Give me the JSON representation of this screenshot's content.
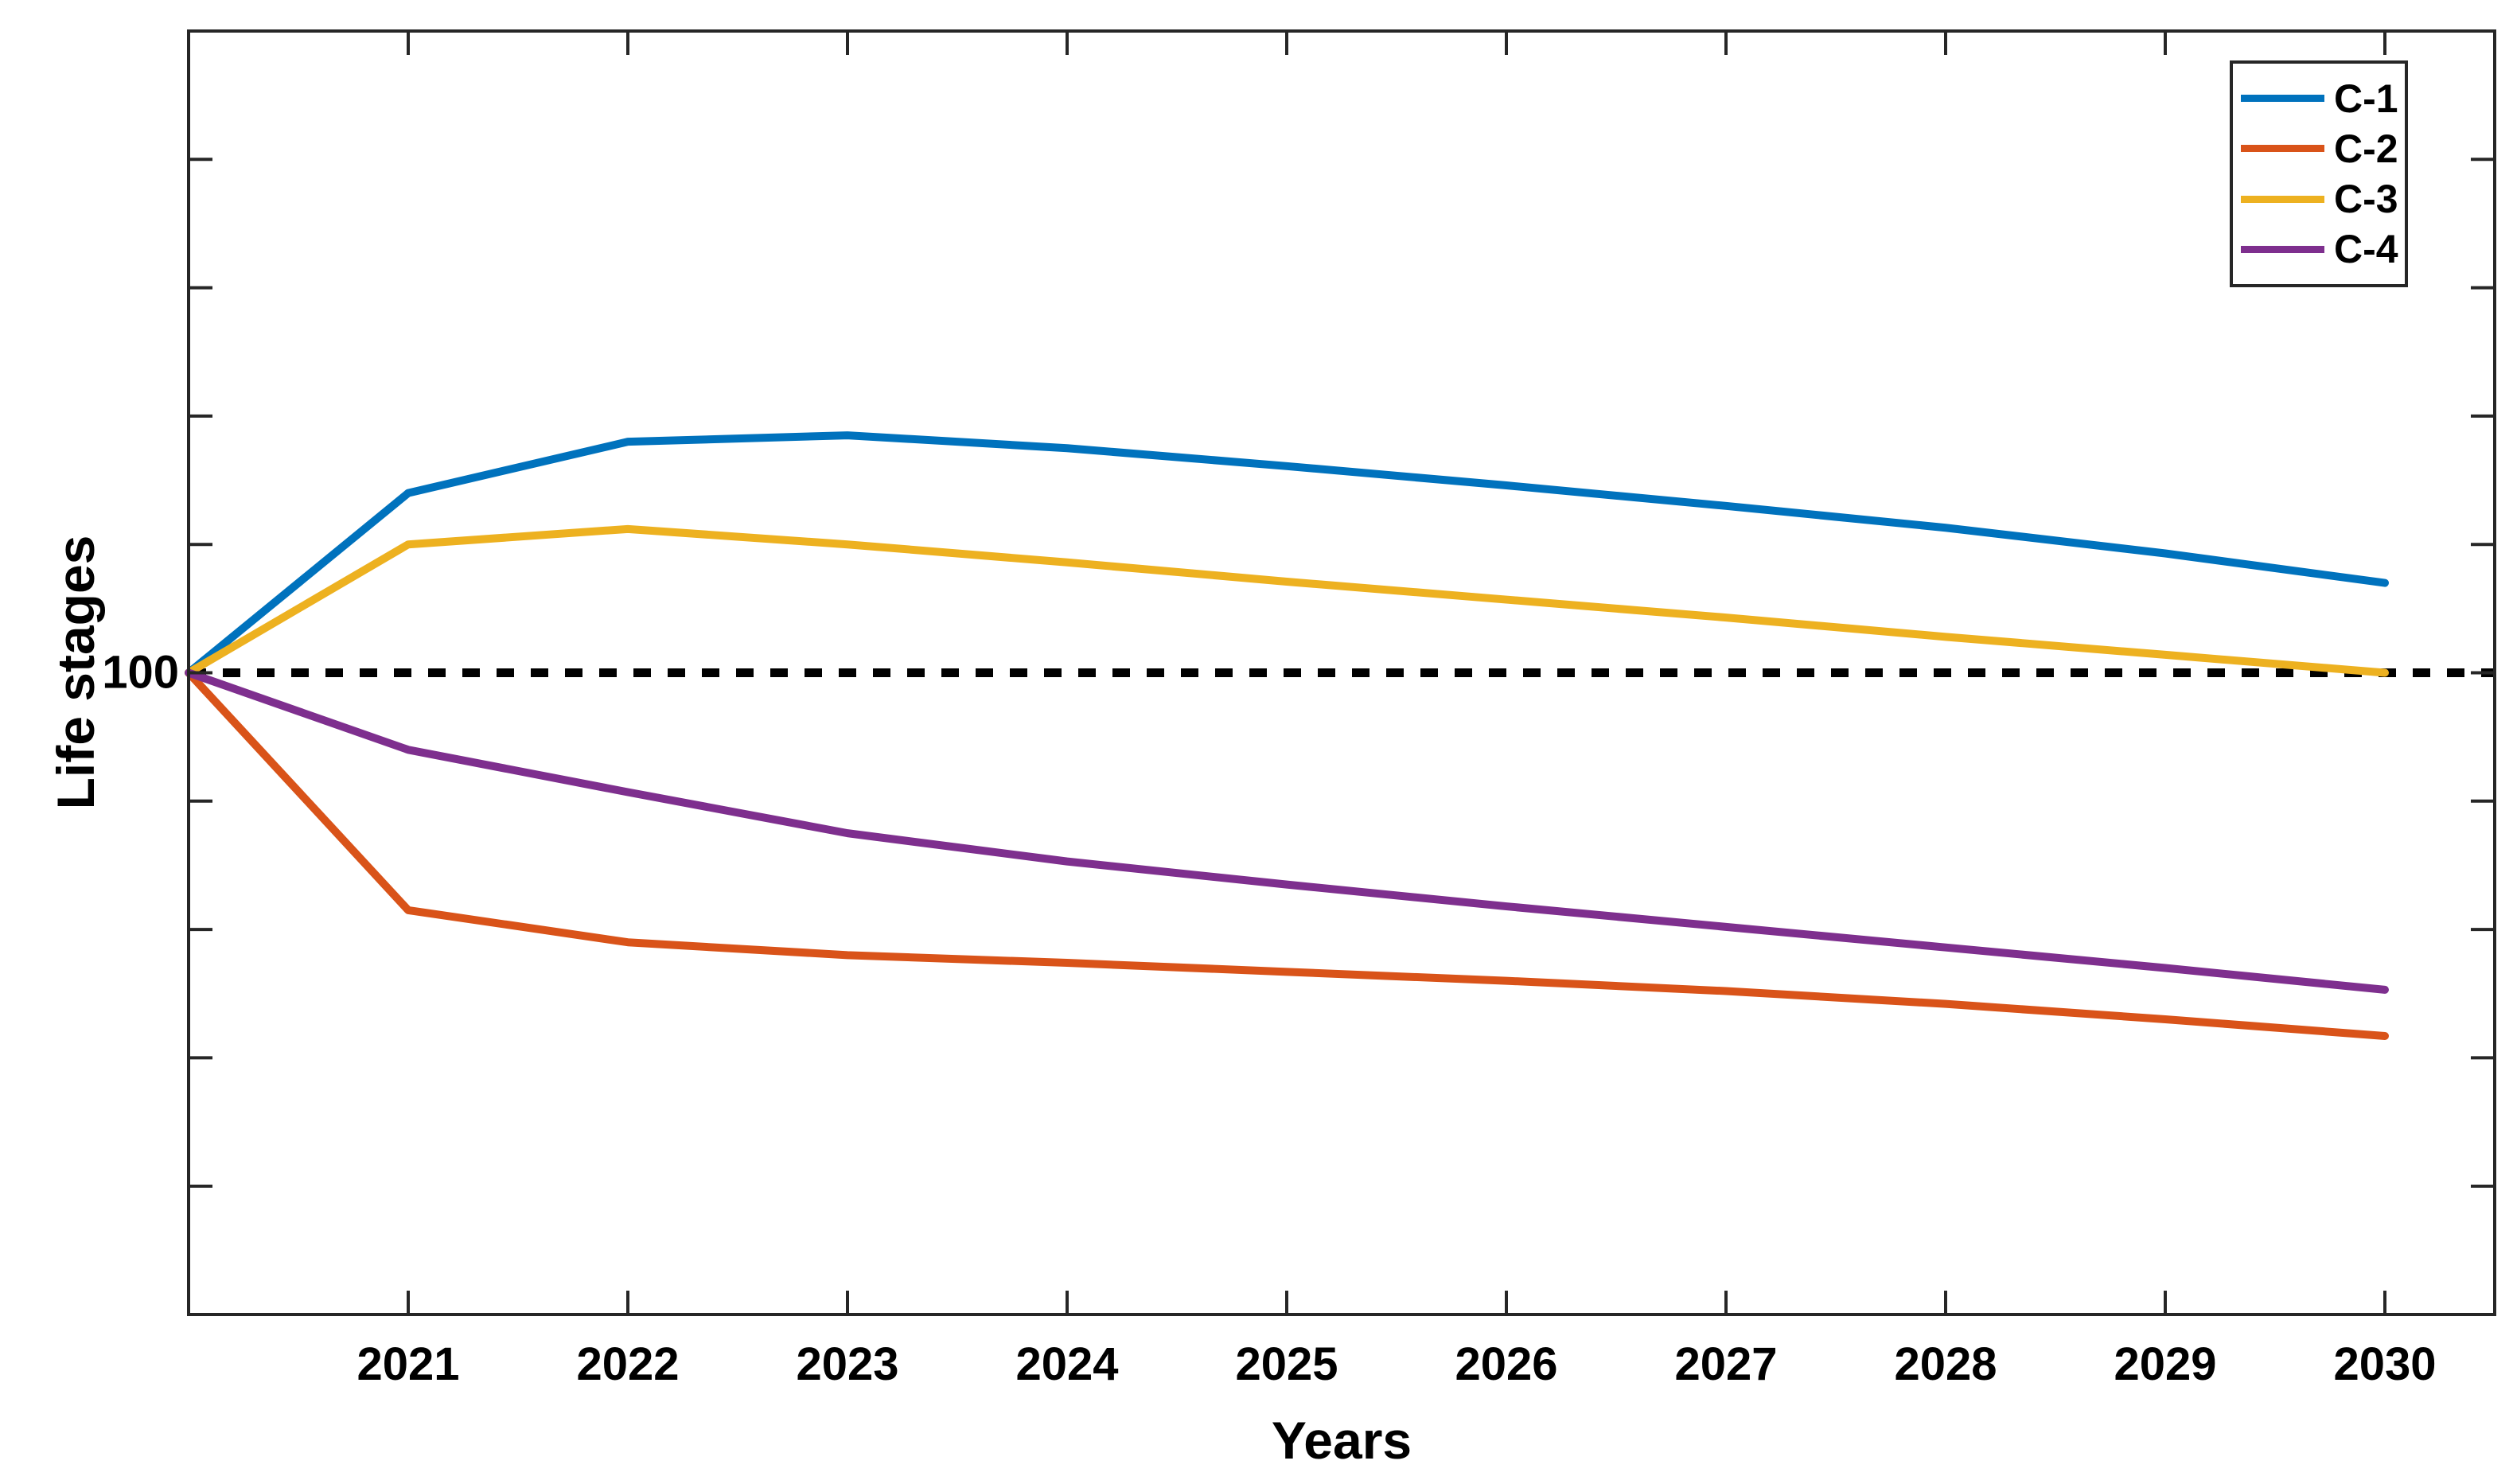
{
  "figure": {
    "background": "#ffffff",
    "axis_color": "#262626",
    "text_color": "#000000"
  },
  "axes": {
    "y_tick_label": "100"
  },
  "chart_data": {
    "type": "line",
    "title": "",
    "xlabel": "Years",
    "ylabel": "Life stages",
    "x": [
      2020,
      2021,
      2022,
      2023,
      2024,
      2025,
      2026,
      2027,
      2028,
      2029,
      2030
    ],
    "x_tick_labels": [
      "2021",
      "2022",
      "2023",
      "2024",
      "2025",
      "2026",
      "2027",
      "2028",
      "2029",
      "2030"
    ],
    "xlim": [
      2020,
      2030.5
    ],
    "ylim": [
      50,
      150
    ],
    "y_ticks": [
      60,
      70,
      80,
      90,
      100,
      110,
      120,
      130,
      140
    ],
    "y_tick_labels_shown": [
      "100"
    ],
    "grid": false,
    "legend_position": "top-right",
    "reference_line": {
      "y": 100,
      "style": "dashed",
      "color": "#000000"
    },
    "series": [
      {
        "name": "C-1",
        "color": "#0072BD",
        "values": [
          100,
          114,
          118,
          118.5,
          117.5,
          116.1,
          114.6,
          113,
          111.3,
          109.3,
          107
        ]
      },
      {
        "name": "C-2",
        "color": "#D95319",
        "values": [
          100,
          81.5,
          79,
          78,
          77.4,
          76.7,
          76,
          75.2,
          74.2,
          73,
          71.7
        ]
      },
      {
        "name": "C-3",
        "color": "#EDB120",
        "values": [
          100,
          110,
          111.2,
          110,
          108.6,
          107.1,
          105.7,
          104.3,
          102.8,
          101.4,
          100
        ]
      },
      {
        "name": "C-4",
        "color": "#7E2F8E",
        "values": [
          100,
          94,
          90.7,
          87.5,
          85.3,
          83.5,
          81.8,
          80.2,
          78.6,
          77,
          75.3
        ]
      }
    ]
  }
}
